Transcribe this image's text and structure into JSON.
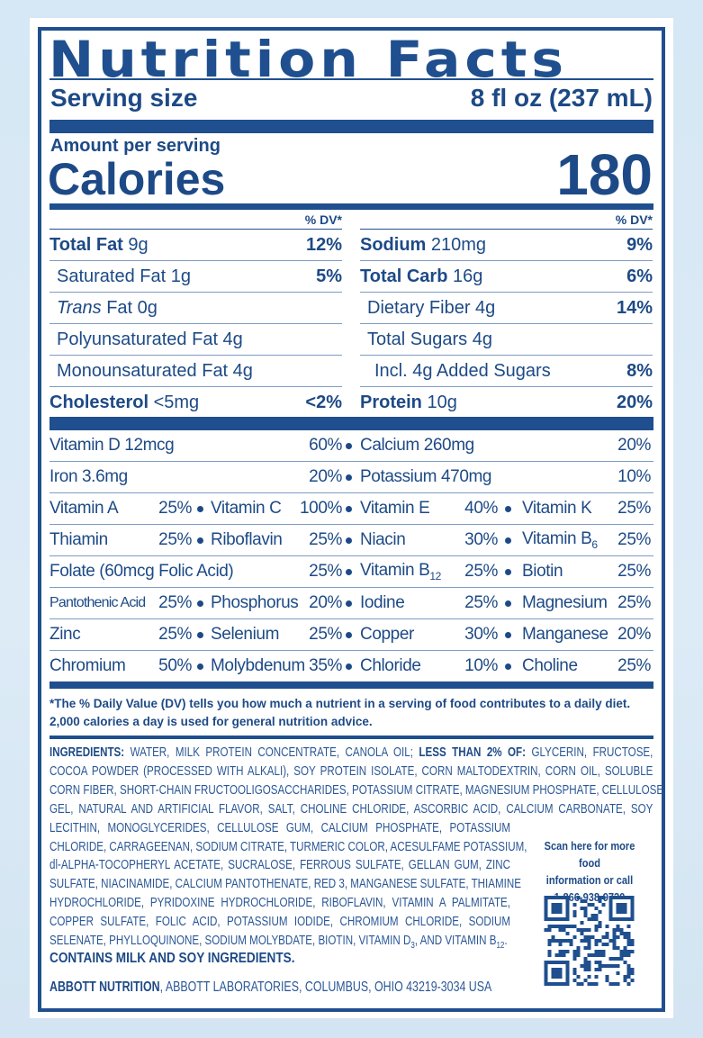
{
  "title": "Nutrition Facts",
  "serving": {
    "label": "Serving size",
    "value": "8 fl oz (237 mL)"
  },
  "amount_per_serving": "Amount per serving",
  "calories": {
    "label": "Calories",
    "value": "180"
  },
  "dv_header": "% DV*",
  "left_nutrients": [
    {
      "label": "Total Fat",
      "amount": " 9g",
      "dv": "12%",
      "bold": true,
      "indent": 0
    },
    {
      "label": "Saturated Fat 1g",
      "amount": "",
      "dv": "5%",
      "bold": false,
      "indent": 1
    },
    {
      "label": "Trans",
      "label_italic": true,
      "amount": " Fat 0g",
      "dv": "",
      "bold": false,
      "indent": 1
    },
    {
      "label": "Polyunsaturated Fat 4g",
      "amount": "",
      "dv": "",
      "bold": false,
      "indent": 1
    },
    {
      "label": "Monounsaturated Fat 4g",
      "amount": "",
      "dv": "",
      "bold": false,
      "indent": 1
    },
    {
      "label": "Cholesterol",
      "amount": " <5mg",
      "dv": "<2%",
      "bold": true,
      "indent": 0
    }
  ],
  "right_nutrients": [
    {
      "label": "Sodium",
      "amount": " 210mg",
      "dv": "9%",
      "bold": true,
      "indent": 0
    },
    {
      "label": "Total Carb",
      "amount": " 16g",
      "dv": "6%",
      "bold": true,
      "indent": 0
    },
    {
      "label": "Dietary Fiber 4g",
      "amount": "",
      "dv": "14%",
      "bold": false,
      "indent": 1
    },
    {
      "label": "Total Sugars 4g",
      "amount": "",
      "dv": "",
      "bold": false,
      "indent": 1
    },
    {
      "label": "Incl. 4g Added Sugars",
      "amount": "",
      "dv": "8%",
      "bold": false,
      "indent": 2
    },
    {
      "label": "Protein",
      "amount": " 10g",
      "dv": "20%",
      "bold": true,
      "indent": 0
    }
  ],
  "vitamins": [
    [
      {
        "name": "Vitamin D 12mcg",
        "pct": "60%",
        "span": 2
      },
      {
        "name": "Calcium 260mg",
        "pct": "20%",
        "span": 2
      }
    ],
    [
      {
        "name": "Iron 3.6mg",
        "pct": "20%",
        "span": 2
      },
      {
        "name": "Potassium 470mg",
        "pct": "10%",
        "span": 2
      }
    ],
    [
      {
        "name": "Vitamin A",
        "pct": "25%"
      },
      {
        "name": "Vitamin C",
        "pct": "100%"
      },
      {
        "name": "Vitamin E",
        "pct": "40%"
      },
      {
        "name": "Vitamin K",
        "pct": "25%"
      }
    ],
    [
      {
        "name": "Thiamin",
        "pct": "25%"
      },
      {
        "name": "Riboflavin",
        "pct": "25%"
      },
      {
        "name": "Niacin",
        "pct": "30%"
      },
      {
        "name": "Vitamin B",
        "sub": "6",
        "pct": "25%"
      }
    ],
    [
      {
        "name": "Folate (60mcg Folic Acid)",
        "pct": "25%",
        "span": 2
      },
      {
        "name": "Vitamin B",
        "sub": "12",
        "pct": "25%"
      },
      {
        "name": "Biotin",
        "pct": "25%"
      }
    ],
    [
      {
        "name": "Pantothenic Acid",
        "pct": "25%",
        "small": true
      },
      {
        "name": "Phosphorus",
        "pct": "20%"
      },
      {
        "name": "Iodine",
        "pct": "25%"
      },
      {
        "name": "Magnesium",
        "pct": "25%"
      }
    ],
    [
      {
        "name": "Zinc",
        "pct": "25%"
      },
      {
        "name": "Selenium",
        "pct": "25%"
      },
      {
        "name": "Copper",
        "pct": "30%"
      },
      {
        "name": "Manganese",
        "pct": "20%"
      }
    ],
    [
      {
        "name": "Chromium",
        "pct": "50%"
      },
      {
        "name": "Molybdenum",
        "pct": "35%"
      },
      {
        "name": "Chloride",
        "pct": "10%"
      },
      {
        "name": "Choline",
        "pct": "25%"
      }
    ]
  ],
  "footnote": "*The % Daily Value (DV) tells you how much a nutrient in a serving of food contributes to a daily diet. 2,000 calories a day is used for general nutrition advice.",
  "ingredients": [
    [
      {
        "t": "INGREDIENTS:",
        "b": true
      },
      {
        "t": " WATER, MILK PROTEIN CONCENTRATE, CANOLA OIL; "
      },
      {
        "t": "LESS THAN 2% OF:",
        "b": true
      },
      {
        "t": " GLYCERIN, FRUCTOSE,"
      }
    ],
    [
      {
        "t": "COCOA POWDER (PROCESSED WITH ALKALI), SOY PROTEIN ISOLATE, CORN MALTODEXTRIN, CORN OIL, SOLUBLE"
      }
    ],
    [
      {
        "t": "CORN FIBER, SHORT-CHAIN FRUCTOOLIGOSACCHARIDES, POTASSIUM CITRATE, MAGNESIUM PHOSPHATE, CELLULOSE"
      }
    ],
    [
      {
        "t": "GEL, NATURAL AND ARTIFICIAL FLAVOR, SALT, CHOLINE CHLORIDE, ASCORBIC ACID, CALCIUM CARBONATE, SOY"
      }
    ],
    [
      {
        "t": "LECITHIN, MONOGLYCERIDES, CELLULOSE GUM, CALCIUM PHOSPHATE, POTASSIUM"
      }
    ],
    [
      {
        "t": "CHLORIDE, CARRAGEENAN, SODIUM CITRATE, TURMERIC COLOR, ACESULFAME POTASSIUM,"
      }
    ],
    [
      {
        "t": "dl-ALPHA-TOCOPHERYL ACETATE, SUCRALOSE, FERROUS SULFATE, GELLAN GUM, ZINC"
      }
    ],
    [
      {
        "t": "SULFATE, NIACINAMIDE, CALCIUM PANTOTHENATE, RED 3, MANGANESE SULFATE, THIAMINE"
      }
    ],
    [
      {
        "t": "HYDROCHLORIDE, PYRIDOXINE HYDROCHLORIDE, RIBOFLAVIN, VITAMIN A PALMITATE,"
      }
    ],
    [
      {
        "t": "COPPER SULFATE, FOLIC ACID, POTASSIUM IODIDE, CHROMIUM CHLORIDE, SODIUM"
      }
    ],
    [
      {
        "t": "SELENATE, PHYLLOQUINONE, SODIUM MOLYBDATE, BIOTIN, VITAMIN D"
      },
      {
        "t": "3",
        "sub": true
      },
      {
        "t": ", AND VITAMIN B"
      },
      {
        "t": "12",
        "sub": true
      },
      {
        "t": "."
      }
    ]
  ],
  "contains": "CONTAINS MILK AND SOY INGREDIENTS.",
  "manufacturer": {
    "name": "ABBOTT NUTRITION",
    "address": ", ABBOTT LABORATORIES, COLUMBUS, OHIO 43219-3034 USA"
  },
  "scan": {
    "line1": "Scan here for more food",
    "line2": "information or call",
    "phone": "1-866-938-9730"
  },
  "colors": {
    "navy": "#1f4f8e",
    "background": "#d9e8f4"
  },
  "icons": {
    "qr": "qr-code"
  }
}
